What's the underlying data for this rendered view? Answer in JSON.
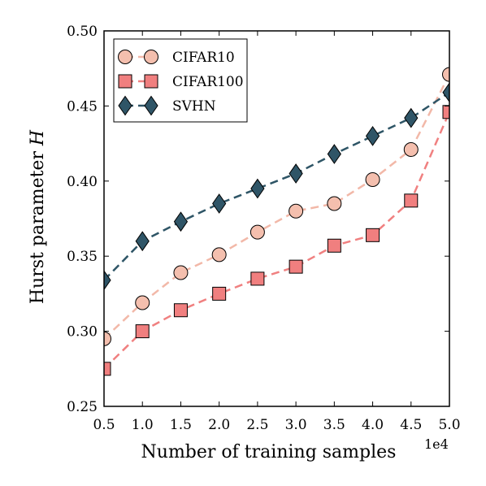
{
  "chart_data": {
    "type": "line",
    "xlabel": "Number of training samples",
    "ylabel": "Hurst parameter H",
    "ylabel_text": "Hurst parameter ",
    "ylabel_var": "H",
    "x_multiplier_label": "1e4",
    "xlim": [
      0.5,
      5.0
    ],
    "ylim": [
      0.25,
      0.5
    ],
    "x_ticks": [
      "0.5",
      "1.0",
      "1.5",
      "2.0",
      "2.5",
      "3.0",
      "3.5",
      "4.0",
      "4.5",
      "5.0"
    ],
    "y_ticks": [
      "0.25",
      "0.30",
      "0.35",
      "0.40",
      "0.45",
      "0.50"
    ],
    "grid": false,
    "legend_position": "top-left",
    "x": [
      0.5,
      1.0,
      1.5,
      2.0,
      2.5,
      3.0,
      3.5,
      4.0,
      4.5,
      5.0
    ],
    "series": [
      {
        "name": "CIFAR10",
        "marker": "circle",
        "line_color": "#f2b8a8",
        "marker_color": "#f4bfae",
        "values": [
          0.295,
          0.319,
          0.339,
          0.351,
          0.366,
          0.38,
          0.385,
          0.401,
          0.421,
          0.471
        ]
      },
      {
        "name": "CIFAR100",
        "marker": "square",
        "line_color": "#f08080",
        "marker_color": "#f07f7f",
        "values": [
          0.275,
          0.3,
          0.314,
          0.325,
          0.335,
          0.343,
          0.357,
          0.364,
          0.387,
          0.446
        ]
      },
      {
        "name": "SVHN",
        "marker": "diamond",
        "line_color": "#2e5566",
        "marker_color": "#2f5567",
        "values": [
          0.334,
          0.36,
          0.373,
          0.385,
          0.395,
          0.405,
          0.418,
          0.43,
          0.442,
          0.459
        ]
      }
    ]
  }
}
